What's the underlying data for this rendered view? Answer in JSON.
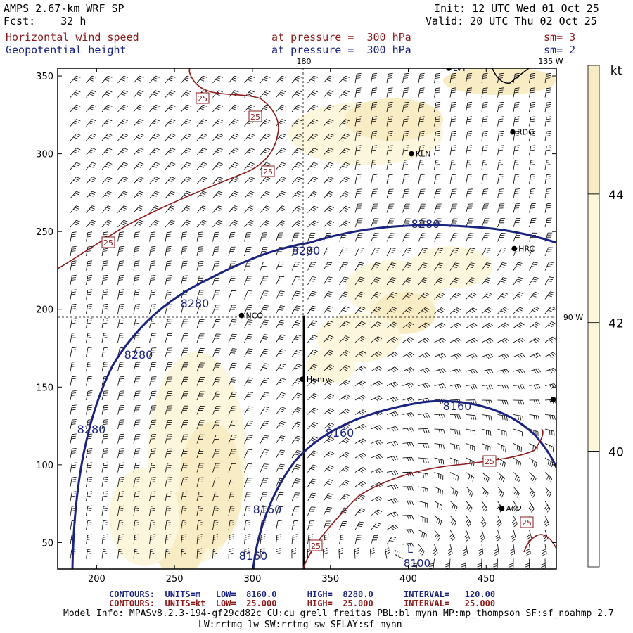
{
  "header": {
    "model_name": "AMPS 2.67-km WRF SP",
    "forecast": "Fcst:    32 h",
    "init": "Init: 12 UTC Wed 01 Oct 25",
    "valid": "Valid: 20 UTC Thu 02 Oct 25",
    "field1_name": "Horizontal wind speed",
    "field1_level": "at pressure =  300 hPa",
    "field1_sm": "sm= 3",
    "field2_name": "Geopotential height",
    "field2_level": "at pressure =  300 hPa",
    "field2_sm": "sm= 2"
  },
  "footer": {
    "contours_blue": "CONTOURS:  UNITS=m   LOW=  8160.0      HIGH=  8280.0      INTERVAL=   120.00",
    "contours_red": "CONTOURS:  UNITS=kt  LOW=  25.000      HIGH=  25.000      INTERVAL=   25.000",
    "model_info_1": "Model Info: MPASv8.2.3-194-gf29cd82c CU:cu_grell_freitas PBL:bl_mynn MP:mp_thompson SF:sf_noahmp 2.7",
    "model_info_2": "LW:rrtmg_lw SW:rrtmg_sw SFLAY:sf_mynn"
  },
  "colors": {
    "height_contour": "#1a237e",
    "speed_contour": "#8b1a1a",
    "shade_light": "#fcf6dd",
    "shade_mid": "#f7ecc4",
    "wind_barb": "#000000"
  },
  "chart_data": {
    "type": "heatmap",
    "description_type": "meteorological map: shaded wind speed, geopotential height contours, wind barbs",
    "x_ticks": [
      200,
      250,
      300,
      350,
      400,
      450
    ],
    "y_ticks": [
      50,
      100,
      150,
      200,
      250,
      300,
      350
    ],
    "xlim": [
      175,
      495
    ],
    "ylim": [
      33,
      355
    ],
    "colorbar": {
      "unit": "kt",
      "levels": [
        40,
        42,
        44
      ],
      "colors": [
        "#ffffff",
        "#fcf6dd",
        "#f7ecc4"
      ]
    },
    "meridian_labels": [
      "180",
      "135 W",
      "90 W"
    ],
    "stations": [
      {
        "name": "LVT",
        "x": 426,
        "y": 355
      },
      {
        "name": "RDG",
        "x": 467,
        "y": 314
      },
      {
        "name": "KLN",
        "x": 402,
        "y": 300
      },
      {
        "name": "HRC",
        "x": 468,
        "y": 239
      },
      {
        "name": "NCO",
        "x": 293,
        "y": 196
      },
      {
        "name": "Henry",
        "x": 332,
        "y": 155
      },
      {
        "name": "AG2",
        "x": 460,
        "y": 72
      },
      {
        "name": "",
        "x": 493,
        "y": 142
      }
    ],
    "height_contours": [
      {
        "value": 8280,
        "labels": [
          "8280",
          "8280",
          "8280",
          "8280",
          "8280"
        ]
      },
      {
        "value": 8160,
        "labels": [
          "8160",
          "8160",
          "8160",
          "8160"
        ]
      }
    ],
    "speed_contours": [
      {
        "value": 25,
        "labels": [
          "25",
          "25",
          "25",
          "25",
          "25",
          "25",
          "25"
        ]
      }
    ],
    "low_label": "L",
    "low_value": "8100",
    "section_line": {
      "x": 333,
      "y_start": 33,
      "y_end": 196
    }
  }
}
